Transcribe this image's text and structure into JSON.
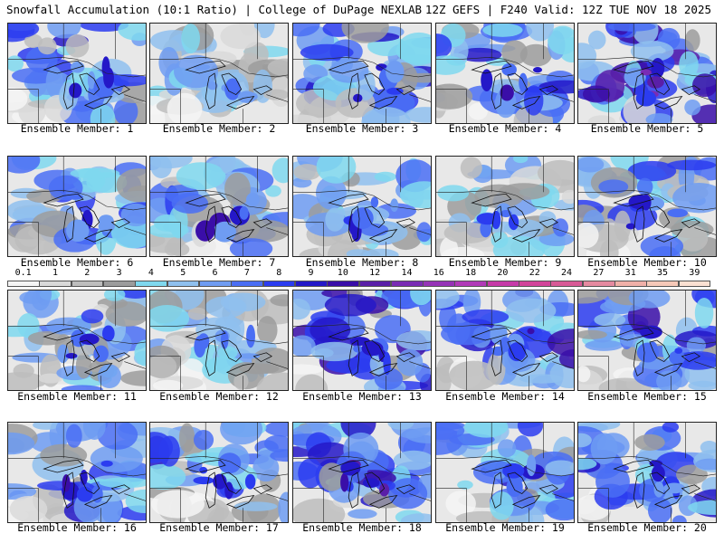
{
  "header": {
    "title": "Snowfall Accumulation (10:1 Ratio) | College of DuPage NEXLAB",
    "run_info": "12Z GEFS | F240 Valid: 12Z TUE NOV 18 2025"
  },
  "panel_label_prefix": "Ensemble Member: ",
  "members": [
    {
      "label": "Ensemble Member: 1",
      "intensity": 0.55
    },
    {
      "label": "Ensemble Member: 2",
      "intensity": 0.2
    },
    {
      "label": "Ensemble Member: 3",
      "intensity": 0.6
    },
    {
      "label": "Ensemble Member: 4",
      "intensity": 0.6
    },
    {
      "label": "Ensemble Member: 5",
      "intensity": 0.85
    },
    {
      "label": "Ensemble Member: 6",
      "intensity": 0.5
    },
    {
      "label": "Ensemble Member: 7",
      "intensity": 0.55
    },
    {
      "label": "Ensemble Member: 8",
      "intensity": 0.45
    },
    {
      "label": "Ensemble Member: 9",
      "intensity": 0.35
    },
    {
      "label": "Ensemble Member: 10",
      "intensity": 0.5
    },
    {
      "label": "Ensemble Member: 11",
      "intensity": 0.4
    },
    {
      "label": "Ensemble Member: 12",
      "intensity": 0.25
    },
    {
      "label": "Ensemble Member: 13",
      "intensity": 0.8
    },
    {
      "label": "Ensemble Member: 14",
      "intensity": 0.7
    },
    {
      "label": "Ensemble Member: 15",
      "intensity": 0.65
    },
    {
      "label": "Ensemble Member: 16",
      "intensity": 0.6
    },
    {
      "label": "Ensemble Member: 17",
      "intensity": 0.55
    },
    {
      "label": "Ensemble Member: 18",
      "intensity": 0.7
    },
    {
      "label": "Ensemble Member: 19",
      "intensity": 0.55
    },
    {
      "label": "Ensemble Member: 20",
      "intensity": 0.6
    }
  ],
  "colorbar": {
    "ticks": [
      "0.1",
      "1",
      "2",
      "3",
      "4",
      "5",
      "6",
      "7",
      "8",
      "9",
      "10",
      "12",
      "14",
      "16",
      "18",
      "20",
      "22",
      "24",
      "27",
      "31",
      "35",
      "39"
    ],
    "colors": [
      "#f4f4f4",
      "#d9d9d9",
      "#bdbdbd",
      "#9c9c9c",
      "#7fd8ee",
      "#8fc0ee",
      "#6f9cf2",
      "#4a6ef4",
      "#2b3cf0",
      "#2418c8",
      "#3a0ea8",
      "#5a1fa8",
      "#7a2cb4",
      "#9633b6",
      "#b13ab8",
      "#c63aa8",
      "#d2449a",
      "#d85a96",
      "#e58aa0",
      "#f0b0a8",
      "#f5c8b8",
      "#fae0d2"
    ]
  }
}
